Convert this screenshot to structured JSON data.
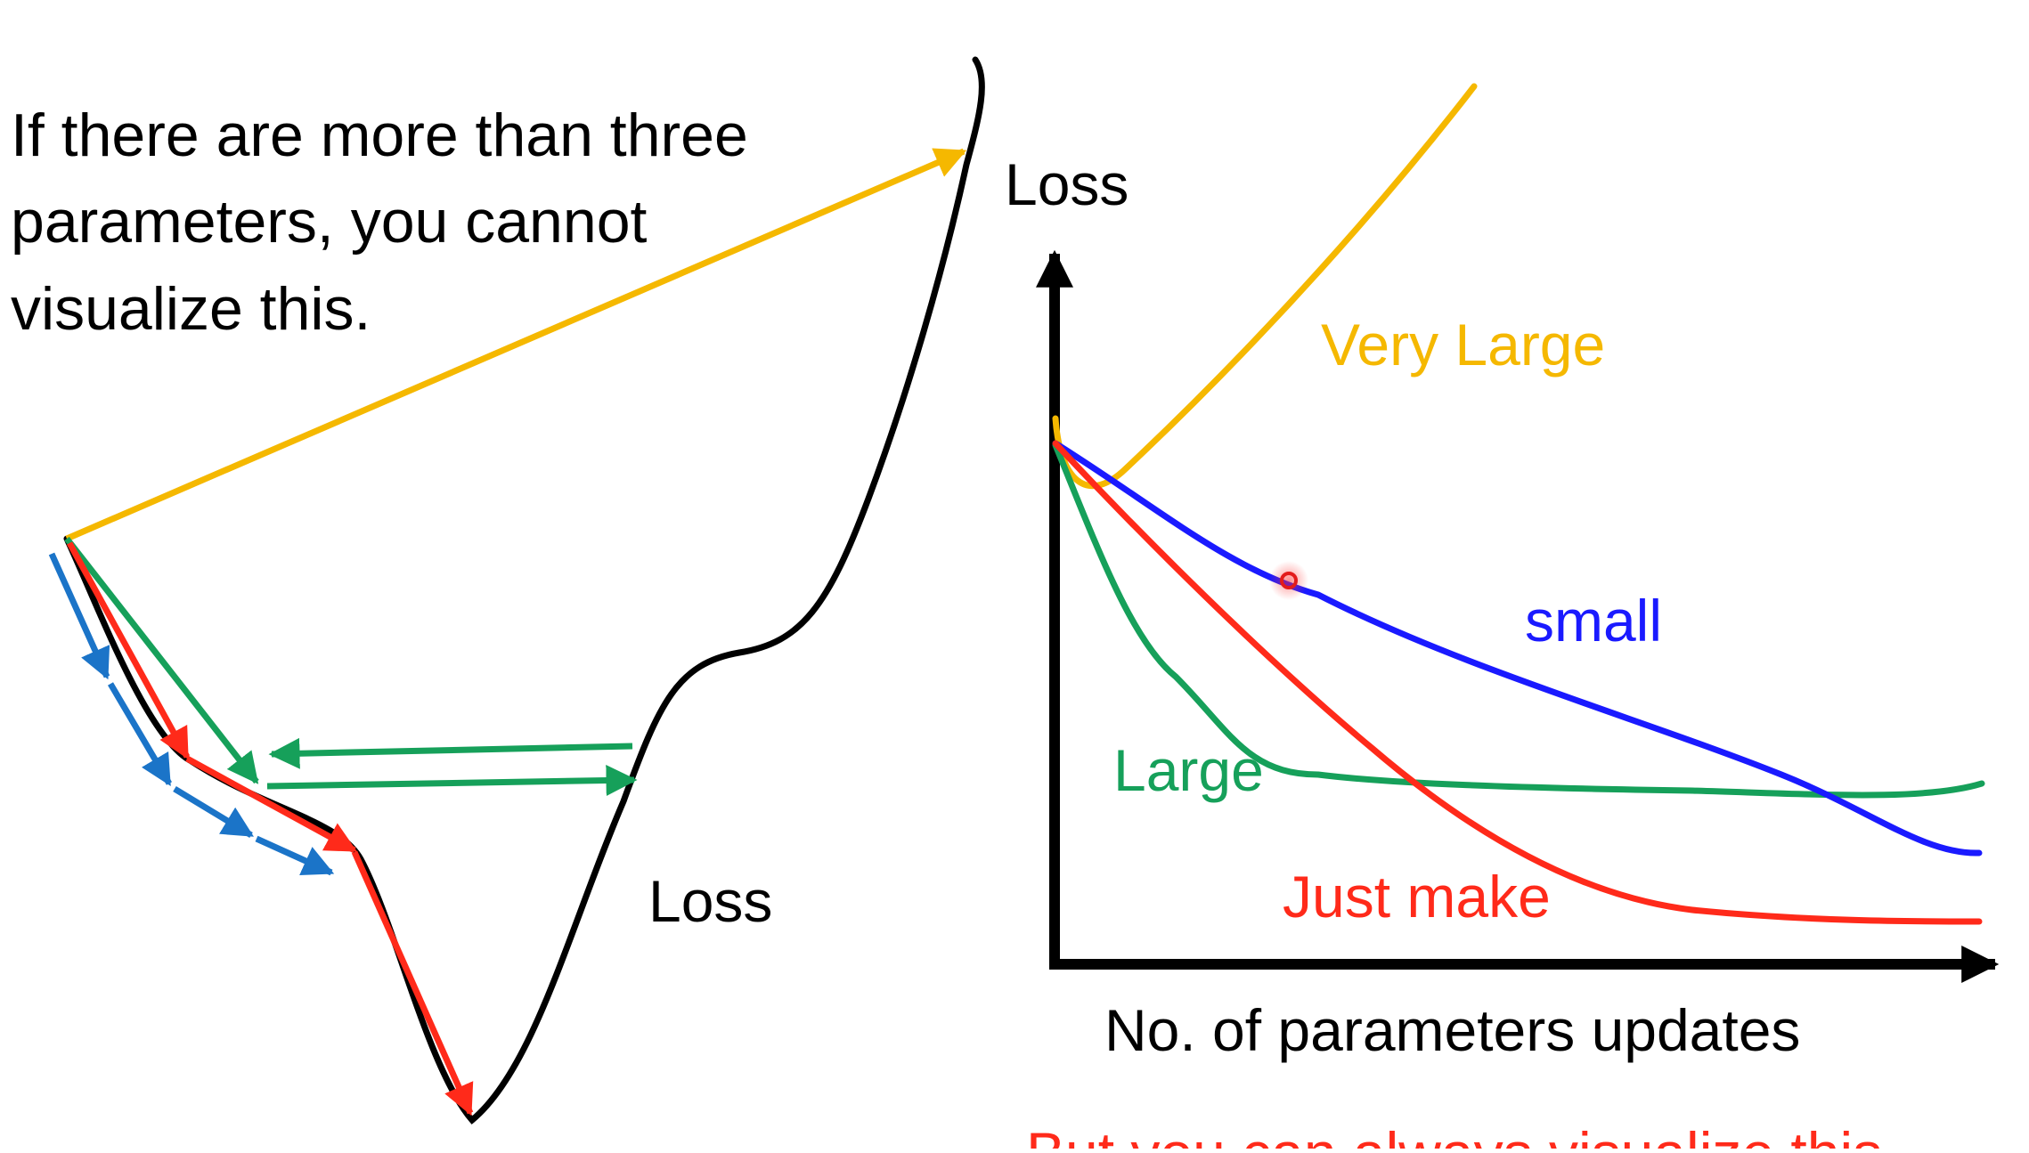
{
  "slide": {
    "note": {
      "lines": [
        "If there are more than three",
        "parameters, you cannot",
        "visualize this."
      ]
    },
    "left_diagram": {
      "loss_label": "Loss"
    },
    "right_chart": {
      "y_axis_label": "Loss",
      "x_axis_label": "No. of parameters updates",
      "curves": [
        {
          "label": "Very Large",
          "color": "#F5B800"
        },
        {
          "label": "small",
          "color": "#1A1AFF"
        },
        {
          "label": "Large",
          "color": "#16A05A"
        },
        {
          "label": "Just make",
          "color": "#FF2A1A"
        }
      ]
    },
    "footer": {
      "text": "But you can always visualize this.",
      "color": "#FF2A1A"
    }
  },
  "colors": {
    "loss_curve": "#000000",
    "blue_steps": "#1B74C8",
    "green_steps": "#16A05A",
    "red_steps": "#FF2A1A",
    "yellow_step": "#F5B800",
    "cursor": "#FF3333"
  },
  "icons": {
    "cursor": "pointer-highlight-icon"
  }
}
